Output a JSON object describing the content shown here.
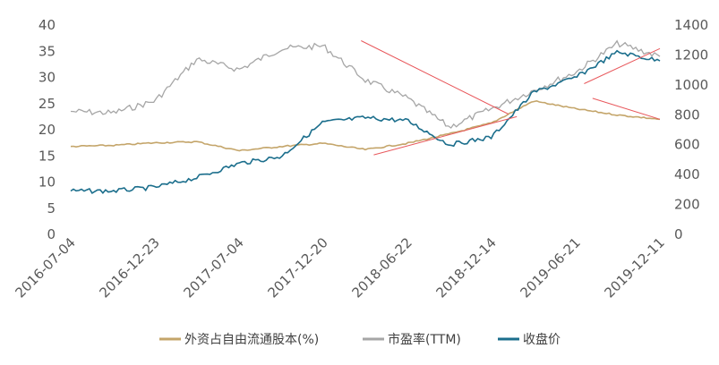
{
  "chart_data": {
    "type": "line",
    "title": "",
    "colors": {
      "foreign_share": "#C4A56A",
      "pe_ttm": "#A6A6A6",
      "close": "#1B6E8C",
      "trend": "#E8585C"
    },
    "x_ticks": [
      "2016-07-04",
      "2016-12-23",
      "2017-07-04",
      "2017-12-20",
      "2018-06-22",
      "2018-12-14",
      "2019-06-21",
      "2019-12-11"
    ],
    "left_axis": {
      "ylim": [
        0,
        40
      ],
      "ticks": [
        0,
        5,
        10,
        15,
        20,
        25,
        30,
        35,
        40
      ]
    },
    "right_axis": {
      "ylim": [
        0,
        1400
      ],
      "ticks": [
        0,
        200,
        400,
        600,
        800,
        1000,
        1200,
        1400
      ]
    },
    "grid": false,
    "legend_position": "bottom",
    "x_index": [
      0,
      0.5,
      1,
      1.5,
      2,
      2.5,
      3,
      3.5,
      4,
      4.5,
      5,
      5.5,
      6,
      6.5,
      7
    ],
    "series": [
      {
        "name": "外资占自由流通股本(%)",
        "axis": "left",
        "values": [
          16.8,
          17.0,
          17.5,
          17.7,
          16.0,
          16.8,
          17.4,
          16.2,
          17.4,
          19.2,
          21.3,
          25.5,
          24.0,
          22.8,
          22.0
        ]
      },
      {
        "name": "市盈率(TTM)",
        "axis": "left",
        "values": [
          23.5,
          23.2,
          25.5,
          33.5,
          31.5,
          35.5,
          36.0,
          29.5,
          26.0,
          20.5,
          24.0,
          27.5,
          31.0,
          36.5,
          34.0
        ]
      },
      {
        "name": "收盘价",
        "axis": "right",
        "values": [
          290,
          290,
          315,
          380,
          475,
          520,
          750,
          780,
          760,
          600,
          650,
          950,
          1050,
          1220,
          1160
        ]
      }
    ],
    "trend_lines": [
      {
        "axis": "left",
        "points": [
          [
            3.45,
            37.0
          ],
          [
            5.2,
            23.0
          ]
        ]
      },
      {
        "axis": "left",
        "points": [
          [
            3.6,
            15.2
          ],
          [
            5.3,
            22.5
          ]
        ]
      },
      {
        "axis": "left",
        "points": [
          [
            6.1,
            28.8
          ],
          [
            7.0,
            35.5
          ]
        ]
      },
      {
        "axis": "left",
        "points": [
          [
            6.2,
            26.0
          ],
          [
            7.0,
            22.0
          ]
        ]
      }
    ]
  }
}
